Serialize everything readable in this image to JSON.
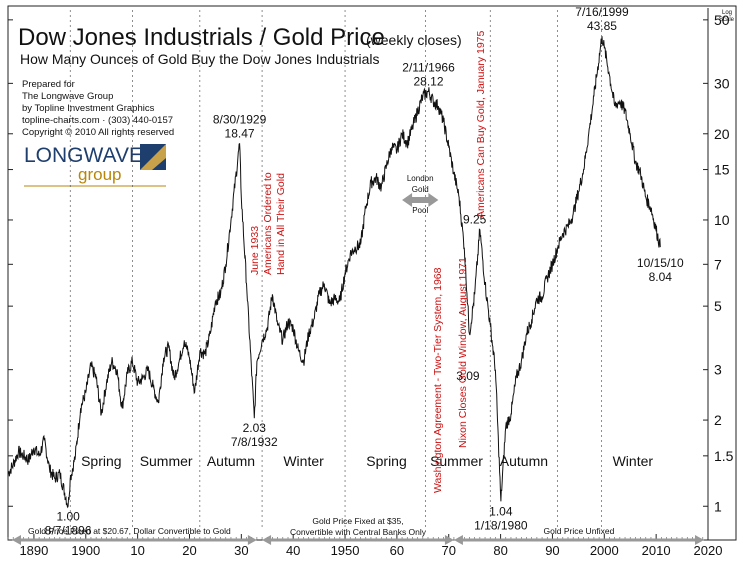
{
  "chart_data": {
    "type": "line",
    "title": "Dow Jones Industrials / Gold Price",
    "title_note": "(weekly closes)",
    "subtitle": "How Many Ounces of Gold Buy the Dow Jones Industrials",
    "credits": [
      "Prepared for",
      "The Longwave Group",
      "by Topline Investment Graphics",
      "topline-charts.com · (303) 440-0157",
      "Copyright © 2010  All rights reserved"
    ],
    "logo": {
      "word1": "LONGWAVE",
      "word2": "group"
    },
    "y_axis_caption": [
      "Log",
      "Scale"
    ],
    "yscale": "log",
    "ylim": [
      0.8,
      55
    ],
    "xlim": [
      1885,
      2020
    ],
    "y_ticks": [
      {
        "value": 1,
        "label": "1"
      },
      {
        "value": 1.5,
        "label": "1.5"
      },
      {
        "value": 2,
        "label": "2"
      },
      {
        "value": 3,
        "label": "3"
      },
      {
        "value": 5,
        "label": "5"
      },
      {
        "value": 7,
        "label": "7"
      },
      {
        "value": 10,
        "label": "10"
      },
      {
        "value": 15,
        "label": "15"
      },
      {
        "value": 20,
        "label": "20"
      },
      {
        "value": 30,
        "label": "30"
      },
      {
        "value": 50,
        "label": "50"
      }
    ],
    "x_ticks": [
      {
        "value": 1890,
        "label": "1890"
      },
      {
        "value": 1900,
        "label": "1900"
      },
      {
        "value": 1910,
        "label": "10"
      },
      {
        "value": 1920,
        "label": "20"
      },
      {
        "value": 1930,
        "label": "30"
      },
      {
        "value": 1940,
        "label": "40"
      },
      {
        "value": 1950,
        "label": "1950"
      },
      {
        "value": 1960,
        "label": "60"
      },
      {
        "value": 1970,
        "label": "70"
      },
      {
        "value": 1980,
        "label": "80"
      },
      {
        "value": 1990,
        "label": "90"
      },
      {
        "value": 2000,
        "label": "2000"
      },
      {
        "value": 2010,
        "label": "2010"
      },
      {
        "value": 2020,
        "label": "2020"
      }
    ],
    "season_dividers": [
      1897,
      1909,
      1922,
      1934,
      1950,
      1965.5,
      1978,
      1991,
      1999.5
    ],
    "seasons": [
      {
        "label": "Spring",
        "x": 1903
      },
      {
        "label": "Summer",
        "x": 1915.5
      },
      {
        "label": "Autumn",
        "x": 1928
      },
      {
        "label": "Winter",
        "x": 1942
      },
      {
        "label": "Spring",
        "x": 1958
      },
      {
        "label": "Summer",
        "x": 1971.5
      },
      {
        "label": "Autumn",
        "x": 1984.5
      },
      {
        "label": "Winter",
        "x": 2005.5
      }
    ],
    "series": [
      {
        "x": [
          1885,
          1886,
          1887,
          1888,
          1889,
          1890,
          1891,
          1892,
          1893,
          1894,
          1895,
          1896.6,
          1897,
          1898,
          1899,
          1900,
          1901,
          1902,
          1903,
          1904,
          1905,
          1906,
          1907,
          1908,
          1909,
          1910,
          1911,
          1912,
          1913,
          1914,
          1915,
          1916,
          1917,
          1918,
          1919,
          1920,
          1921,
          1922,
          1923,
          1924,
          1925,
          1926,
          1927,
          1928,
          1929.66,
          1930,
          1931,
          1932.5,
          1933,
          1934,
          1935,
          1936,
          1937,
          1938,
          1939,
          1940,
          1941,
          1942,
          1943,
          1944,
          1945,
          1946,
          1947,
          1948,
          1949,
          1950,
          1951,
          1952,
          1953,
          1954,
          1955,
          1956,
          1957,
          1958,
          1959,
          1960,
          1961,
          1962,
          1963,
          1964,
          1965,
          1966.1,
          1967,
          1968,
          1969,
          1970,
          1971,
          1972,
          1973,
          1974,
          1975,
          1976,
          1977,
          1978,
          1979,
          1980.05,
          1981,
          1982,
          1983,
          1984,
          1985,
          1986,
          1987,
          1988,
          1989,
          1990,
          1991,
          1992,
          1993,
          1994,
          1995,
          1996,
          1997,
          1998,
          1999.55,
          2000,
          2001,
          2002,
          2003,
          2004,
          2005,
          2006,
          2007,
          2008,
          2009,
          2010.8
        ],
        "y": [
          1.3,
          1.4,
          1.55,
          1.5,
          1.45,
          1.6,
          1.5,
          1.7,
          1.35,
          1.25,
          1.3,
          1.0,
          1.25,
          1.5,
          2.2,
          2.5,
          3.1,
          2.8,
          2.1,
          2.7,
          3.2,
          3.0,
          2.2,
          2.9,
          3.2,
          2.7,
          2.8,
          3.0,
          2.6,
          2.3,
          3.3,
          3.6,
          2.8,
          3.2,
          3.8,
          3.3,
          2.5,
          3.5,
          3.4,
          4.0,
          5.2,
          5.5,
          7.0,
          10.0,
          18.47,
          12.0,
          6.0,
          2.03,
          3.2,
          3.8,
          4.2,
          5.5,
          4.3,
          3.8,
          4.4,
          4.2,
          3.5,
          3.2,
          4.0,
          4.5,
          5.5,
          6.0,
          5.1,
          5.3,
          5.2,
          6.5,
          7.6,
          8.0,
          8.2,
          11.0,
          13.5,
          14.0,
          13.0,
          15.5,
          18.0,
          17.5,
          20.0,
          18.5,
          21.0,
          24.0,
          27.0,
          28.12,
          26.0,
          25.0,
          22.0,
          18.0,
          14.5,
          12.0,
          8.0,
          4.0,
          5.5,
          9.25,
          6.0,
          4.3,
          3.0,
          1.04,
          1.9,
          2.1,
          2.8,
          3.2,
          4.0,
          4.5,
          5.3,
          5.4,
          6.3,
          7.0,
          8.0,
          9.0,
          9.5,
          10.5,
          12.5,
          15.0,
          20.0,
          27.0,
          43.85,
          40.0,
          32.0,
          25.0,
          26.0,
          24.0,
          20.0,
          16.0,
          14.5,
          12.0,
          11.0,
          8.04
        ]
      }
    ],
    "annotations": [
      {
        "label": "1.00",
        "label2": "8/7/1896",
        "x": 1896.6,
        "y": 1.0
      },
      {
        "label": "8/30/1929",
        "label2": "18.47",
        "x": 1929.66,
        "y": 18.47
      },
      {
        "label": "2.03",
        "label2": "7/8/1932",
        "x": 1932.5,
        "y": 2.03
      },
      {
        "label": "2/11/1966",
        "label2": "28.12",
        "x": 1966.1,
        "y": 28.12
      },
      {
        "label": "9.25",
        "x": 1975.0,
        "y": 9.25
      },
      {
        "label": "3.09",
        "x": 1973.7,
        "y": 3.09
      },
      {
        "label": "1.04",
        "label2": "1/18/1980",
        "x": 1980.05,
        "y": 1.04
      },
      {
        "label": "7/16/1999",
        "label2": "43.85",
        "x": 1999.55,
        "y": 43.85
      },
      {
        "label": "10/15/10",
        "label2": "8.04",
        "x": 2010.8,
        "y": 8.04
      }
    ],
    "events": [
      {
        "lines": [
          "June 1933",
          "Americans Ordered to",
          "Hand in All Their Gold"
        ],
        "color": "#cc1111"
      },
      {
        "lines": [
          "Washington Agreement - Two-Tier System, 1968"
        ],
        "color": "#cc1111"
      },
      {
        "lines": [
          "Nixon Closes Gold Window, August 1971"
        ],
        "color": "#cc1111"
      },
      {
        "lines": [
          "Americans Can Buy Gold, January 1975"
        ],
        "color": "#cc1111"
      }
    ],
    "london_pool": {
      "lines": [
        "London",
        "Gold",
        "Pool"
      ],
      "x_start": 1961,
      "x_end": 1968
    },
    "regimes": [
      {
        "label": "Gold Price  Fixed at $20.67, Dollar  Convertible  to Gold",
        "x_start": 1885,
        "x_end": 1933
      },
      {
        "label1": "Gold Price Fixed at $35,",
        "label2": "Convertible with Central  Banks Only",
        "x_start": 1934,
        "x_end": 1971
      },
      {
        "label": "Gold Price Unfixed",
        "x_start": 1971,
        "x_end": 2020
      }
    ],
    "colors": {
      "line": "#111111",
      "event_text": "#cc1111",
      "pool_arrow": "#999999",
      "regime_arrow": "#999999",
      "logo_blue": "#1e3f6e",
      "logo_gold": "#b8860b"
    }
  }
}
